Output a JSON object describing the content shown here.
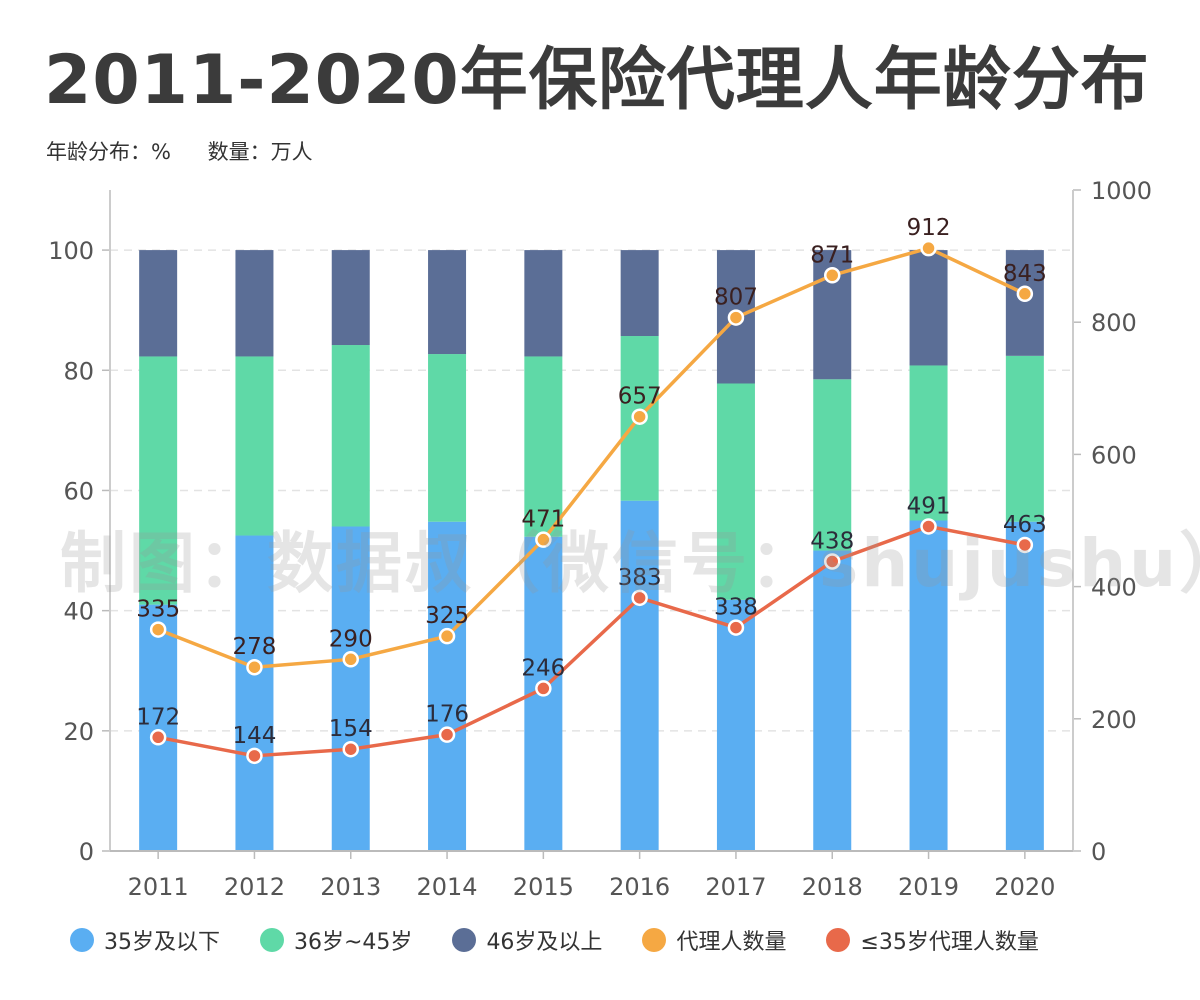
{
  "title": "2011-2020年保险代理人年龄分布",
  "subtitle": {
    "left_unit": "年龄分布：%",
    "right_unit": "数量：万人"
  },
  "watermark": "制图：数据叔（微信号：shujushu）",
  "colors": {
    "under35": "#5aaef2",
    "age36_45": "#5fd9a7",
    "over46": "#5b6e96",
    "agents_line": "#f5a843",
    "young_line": "#e8694a"
  },
  "chart_data": {
    "type": "bar",
    "title": "2011-2020年保险代理人年龄分布",
    "categories": [
      "2011",
      "2012",
      "2013",
      "2014",
      "2015",
      "2016",
      "2017",
      "2018",
      "2019",
      "2020"
    ],
    "y_left": {
      "label": "年龄分布：%",
      "range": [
        0,
        110
      ],
      "ticks": [
        0,
        20,
        40,
        60,
        80,
        100
      ]
    },
    "y_right": {
      "label": "数量：万人",
      "range": [
        0,
        1000
      ],
      "ticks": [
        0,
        200,
        400,
        600,
        800,
        1000
      ]
    },
    "stacked_series": [
      {
        "name": "35岁及以下",
        "color": "#5aaef2",
        "values": [
          41,
          52.5,
          54,
          54.8,
          52.3,
          58.3,
          41.8,
          50,
          55,
          54.8
        ]
      },
      {
        "name": "36岁~45岁",
        "color": "#5fd9a7",
        "values": [
          41.3,
          29.8,
          30.2,
          27.9,
          30,
          27.4,
          36,
          28.5,
          25.8,
          27.6
        ]
      },
      {
        "name": "46岁及以上",
        "color": "#5b6e96",
        "values": [
          17.7,
          17.7,
          15.8,
          17.3,
          17.7,
          14.3,
          22.2,
          21.5,
          19.2,
          17.6
        ]
      }
    ],
    "line_series": [
      {
        "name": "代理人数量",
        "color": "#f5a843",
        "values": [
          335,
          278,
          290,
          325,
          471,
          657,
          807,
          871,
          912,
          843
        ]
      },
      {
        "name": "≤35岁代理人数量",
        "color": "#e8694a",
        "values": [
          172,
          144,
          154,
          176,
          246,
          383,
          338,
          438,
          491,
          463
        ]
      }
    ],
    "grid": "dashed horizontal",
    "legend": "bottom"
  },
  "legend": [
    {
      "label": "35岁及以下",
      "color": "#5aaef2"
    },
    {
      "label": "36岁~45岁",
      "color": "#5fd9a7"
    },
    {
      "label": "46岁及以上",
      "color": "#5b6e96"
    },
    {
      "label": "代理人数量",
      "color": "#f5a843"
    },
    {
      "label": "≤35岁代理人数量",
      "color": "#e8694a"
    }
  ]
}
